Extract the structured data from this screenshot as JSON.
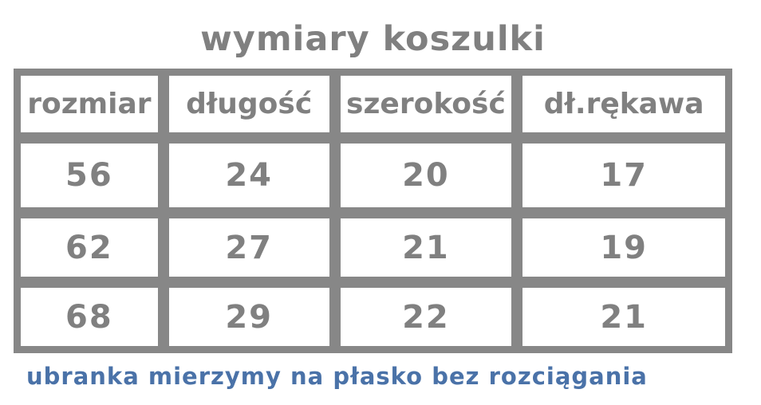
{
  "title": "wymiary koszulki",
  "chart_data": {
    "type": "table",
    "title": "wymiary koszulki",
    "columns": [
      "rozmiar",
      "długość",
      "szerokość",
      "dł.rękawa"
    ],
    "rows": [
      [
        "56",
        "24",
        "20",
        "17"
      ],
      [
        "62",
        "27",
        "21",
        "19"
      ],
      [
        "68",
        "29",
        "22",
        "21"
      ]
    ],
    "note": "ubranka mierzymy na płasko bez rozciągania",
    "layout": "grid with thick gray borders, white cells, header row on top"
  },
  "footer_note": "ubranka mierzymy na płasko bez rozciągania",
  "colors": {
    "grid_gray": "#878787",
    "text_gray": "#808080",
    "note_blue": "#4a72a8",
    "cell_white": "#ffffff",
    "background": "#ffffff"
  }
}
